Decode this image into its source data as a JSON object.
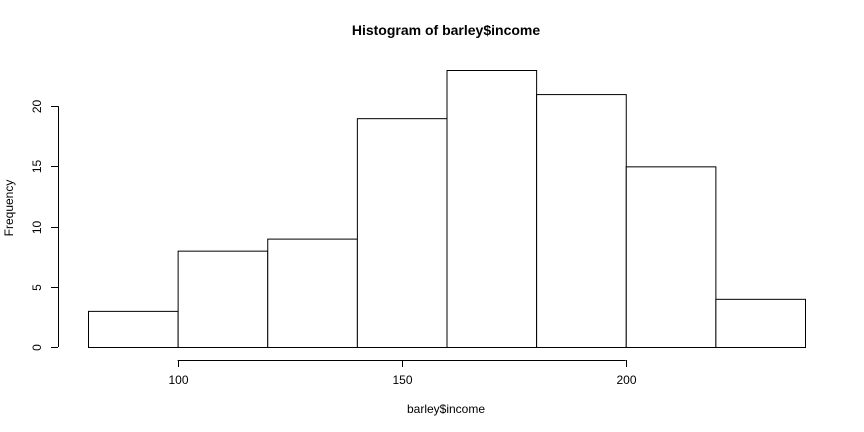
{
  "chart_data": {
    "type": "bar",
    "title": "Histogram of barley$income",
    "xlabel": "barley$income",
    "ylabel": "Frequency",
    "bins": [
      {
        "from": 80,
        "to": 100,
        "count": 3
      },
      {
        "from": 100,
        "to": 120,
        "count": 8
      },
      {
        "from": 120,
        "to": 140,
        "count": 9
      },
      {
        "from": 140,
        "to": 160,
        "count": 19
      },
      {
        "from": 160,
        "to": 180,
        "count": 23
      },
      {
        "from": 180,
        "to": 200,
        "count": 21
      },
      {
        "from": 200,
        "to": 220,
        "count": 15
      },
      {
        "from": 220,
        "to": 240,
        "count": 4
      }
    ],
    "xticks": [
      100,
      150,
      200
    ],
    "yticks": [
      0,
      5,
      10,
      15,
      20
    ],
    "xlim": [
      80,
      240
    ],
    "ylim": [
      0,
      23
    ],
    "grid": false,
    "bar_fill": "#ffffff",
    "bar_stroke": "#000000"
  }
}
